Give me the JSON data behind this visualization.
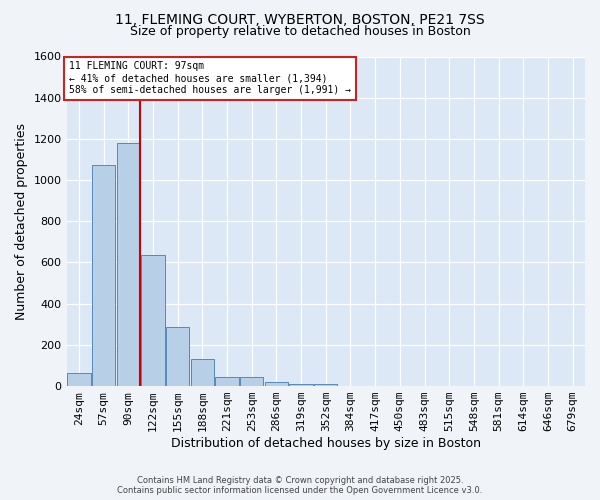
{
  "title_line1": "11, FLEMING COURT, WYBERTON, BOSTON, PE21 7SS",
  "title_line2": "Size of property relative to detached houses in Boston",
  "xlabel": "Distribution of detached houses by size in Boston",
  "ylabel": "Number of detached properties",
  "bar_labels": [
    "24sqm",
    "57sqm",
    "90sqm",
    "122sqm",
    "155sqm",
    "188sqm",
    "221sqm",
    "253sqm",
    "286sqm",
    "319sqm",
    "352sqm",
    "384sqm",
    "417sqm",
    "450sqm",
    "483sqm",
    "515sqm",
    "548sqm",
    "581sqm",
    "614sqm",
    "646sqm",
    "679sqm"
  ],
  "bar_values": [
    65,
    1075,
    1180,
    635,
    285,
    130,
    45,
    45,
    20,
    10,
    10,
    0,
    0,
    0,
    0,
    0,
    0,
    0,
    0,
    0,
    0
  ],
  "bar_color": "#b8cfe8",
  "bar_edge_color": "#5588bb",
  "fig_background": "#f0f4f8",
  "plot_background": "#dce8f5",
  "grid_color": "#ffffff",
  "vline_color": "#cc0000",
  "vline_x_index": 2,
  "ylim_max": 1600,
  "yticks": [
    0,
    200,
    400,
    600,
    800,
    1000,
    1200,
    1400,
    1600
  ],
  "annotation_line1": "11 FLEMING COURT: 97sqm",
  "annotation_line2": "← 41% of detached houses are smaller (1,394)",
  "annotation_line3": "58% of semi-detached houses are larger (1,991) →",
  "annotation_box_edgecolor": "#cc2222",
  "footnote1": "Contains HM Land Registry data © Crown copyright and database right 2025.",
  "footnote2": "Contains public sector information licensed under the Open Government Licence v3.0."
}
